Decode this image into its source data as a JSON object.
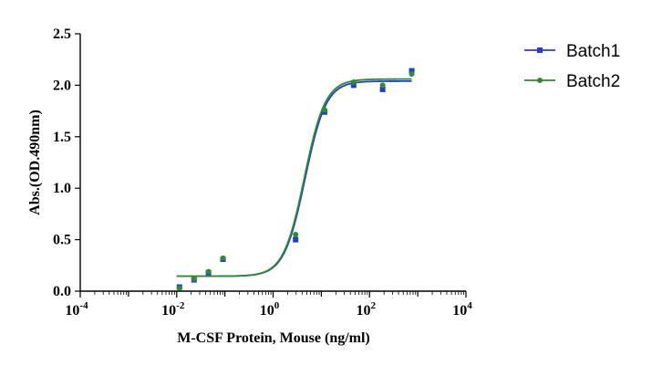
{
  "chart_data": {
    "type": "scatter",
    "xlabel": "M-CSF Protein, Mouse  (ng/ml)",
    "ylabel": "Abs.(OD.490nm)",
    "xscale": "log",
    "xlim": [
      0.0001,
      10000
    ],
    "ylim": [
      0,
      2.5
    ],
    "x_ticks": [
      {
        "base": "10",
        "exp": "-4",
        "value": 0.0001
      },
      {
        "base": "10",
        "exp": "-2",
        "value": 0.01
      },
      {
        "base": "10",
        "exp": "0",
        "value": 1
      },
      {
        "base": "10",
        "exp": "2",
        "value": 100
      },
      {
        "base": "10",
        "exp": "4",
        "value": 10000
      }
    ],
    "y_ticks": [
      {
        "label": "0.0",
        "value": 0
      },
      {
        "label": "0.5",
        "value": 0.5
      },
      {
        "label": "1.0",
        "value": 1.0
      },
      {
        "label": "1.5",
        "value": 1.5
      },
      {
        "label": "2.0",
        "value": 2.0
      },
      {
        "label": "2.5",
        "value": 2.5
      }
    ],
    "legend_position": "top-right",
    "grid": false,
    "series": [
      {
        "name": "Batch1",
        "color": "#1f3fd0",
        "marker": "square",
        "x": [
          0.0114,
          0.0229,
          0.0457,
          0.0914,
          0.183,
          0.366,
          0.731,
          1.46,
          2.93,
          5.85,
          11.7,
          23.4,
          46.8,
          93.6,
          187,
          375,
          750
        ],
        "y": [
          0.04,
          0.11,
          0.18,
          0.31,
          null,
          null,
          null,
          null,
          0.5,
          null,
          1.74,
          null,
          2.0,
          null,
          1.96,
          null,
          2.14
        ],
        "fit": {
          "bottom": 0.145,
          "top": 2.04,
          "ec50": 4.6,
          "hill": 2.0
        }
      },
      {
        "name": "Batch2",
        "color": "#2e8b2e",
        "marker": "circle",
        "x": [
          0.0114,
          0.0229,
          0.0457,
          0.0914,
          0.183,
          0.366,
          0.731,
          1.46,
          2.93,
          5.85,
          11.7,
          23.4,
          46.8,
          93.6,
          187,
          375,
          750
        ],
        "y": [
          0.03,
          0.12,
          0.19,
          0.32,
          null,
          null,
          null,
          null,
          0.55,
          null,
          1.76,
          null,
          2.03,
          null,
          2.0,
          null,
          2.11
        ],
        "fit": {
          "bottom": 0.145,
          "top": 2.06,
          "ec50": 4.45,
          "hill": 2.0
        }
      }
    ]
  }
}
